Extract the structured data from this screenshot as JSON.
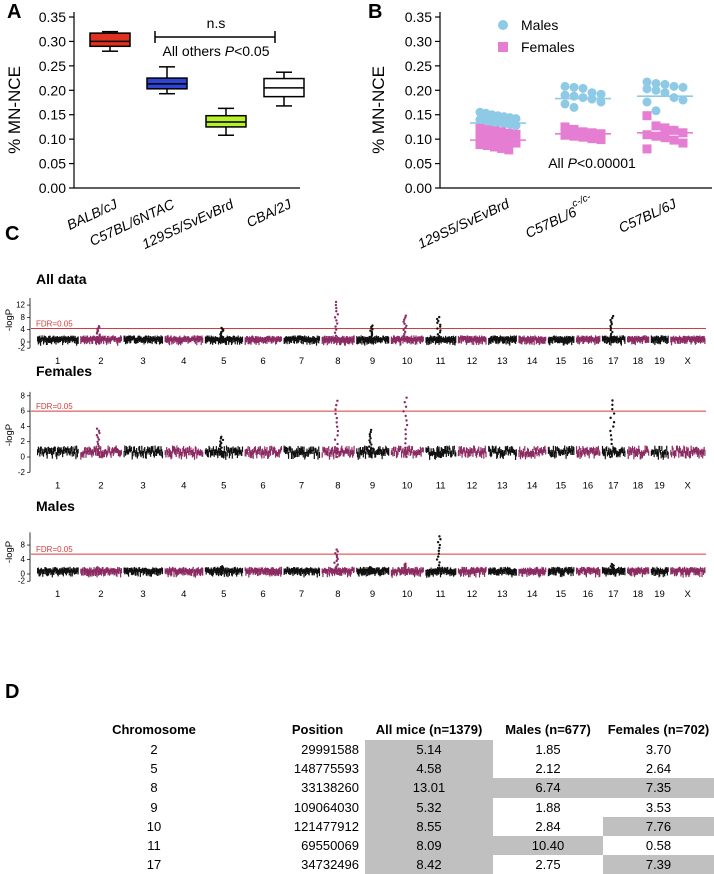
{
  "panel_labels": {
    "a": "A",
    "b": "B",
    "c": "C",
    "d": "D"
  },
  "chart_data": [
    {
      "type": "box",
      "id": "A",
      "ylabel": "% MN-NCE",
      "ylim": [
        0,
        0.35
      ],
      "yticks": [
        "0.00",
        "0.05",
        "0.10",
        "0.15",
        "0.20",
        "0.25",
        "0.30",
        "0.35"
      ],
      "categories": [
        "BALB/cJ",
        "C57BL/6NTAC",
        "129S5/SvEvBrd",
        "CBA/2J"
      ],
      "boxes": [
        {
          "min": 0.28,
          "q1": 0.29,
          "median": 0.3,
          "q3": 0.317,
          "max": 0.32,
          "color": "#e0311e"
        },
        {
          "min": 0.193,
          "q1": 0.203,
          "median": 0.213,
          "q3": 0.225,
          "max": 0.248,
          "color": "#2f44d0"
        },
        {
          "min": 0.108,
          "q1": 0.125,
          "median": 0.135,
          "q3": 0.148,
          "max": 0.163,
          "color": "#b9f02a"
        },
        {
          "min": 0.168,
          "q1": 0.187,
          "median": 0.205,
          "q3": 0.224,
          "max": 0.237,
          "color": "#ffffff"
        }
      ],
      "annotation_ns": "n.s",
      "annotation_prefix": "All others ",
      "annotation_p": "P",
      "annotation_suffix": "<0.05"
    },
    {
      "type": "scatter",
      "id": "B",
      "ylabel": "% MN-NCE",
      "ylim": [
        0,
        0.35
      ],
      "yticks": [
        "0.00",
        "0.05",
        "0.10",
        "0.15",
        "0.20",
        "0.25",
        "0.30",
        "0.35"
      ],
      "categories": [
        "129S5/SvEvBrd",
        "C57BL/6",
        "C57BL/6J"
      ],
      "category_superscript": [
        "",
        "c-/c-",
        ""
      ],
      "legend": [
        "Males",
        "Females"
      ],
      "series": [
        {
          "name": "Males",
          "color": "#8ecae6",
          "means": [
            0.133,
            0.183,
            0.188
          ],
          "values": [
            [
              0.155,
              0.153,
              0.15,
              0.148,
              0.146,
              0.144,
              0.142,
              0.14,
              0.138,
              0.136,
              0.134,
              0.132,
              0.13,
              0.128,
              0.126,
              0.123,
              0.12,
              0.117,
              0.113,
              0.11
            ],
            [
              0.208,
              0.206,
              0.204,
              0.195,
              0.192,
              0.19,
              0.188,
              0.185,
              0.182,
              0.176,
              0.172,
              0.165
            ],
            [
              0.217,
              0.214,
              0.212,
              0.208,
              0.206,
              0.203,
              0.2,
              0.195,
              0.185,
              0.18,
              0.176,
              0.158
            ]
          ]
        },
        {
          "name": "Females",
          "color": "#e57ed2",
          "means": [
            0.098,
            0.111,
            0.113
          ],
          "values": [
            [
              0.122,
              0.119,
              0.117,
              0.115,
              0.112,
              0.11,
              0.107,
              0.104,
              0.101,
              0.098,
              0.095,
              0.092,
              0.089,
              0.087,
              0.084,
              0.081,
              0.078
            ],
            [
              0.125,
              0.12,
              0.115,
              0.113,
              0.111,
              0.108,
              0.106,
              0.104,
              0.101,
              0.099
            ],
            [
              0.148,
              0.127,
              0.123,
              0.118,
              0.113,
              0.109,
              0.106,
              0.103,
              0.098,
              0.092,
              0.08
            ]
          ]
        }
      ],
      "annotation_prefix": "All ",
      "annotation_p": "P",
      "annotation_suffix": "<0.00001"
    },
    {
      "type": "manhattan",
      "id": "C",
      "ylabel": "-logP",
      "fdr_label": "FDR=0.05",
      "chromosomes": [
        "1",
        "2",
        "3",
        "4",
        "5",
        "6",
        "7",
        "8",
        "9",
        "10",
        "11",
        "12",
        "13",
        "14",
        "15",
        "16",
        "17",
        "18",
        "19",
        "X"
      ],
      "colors": [
        "#111111",
        "#8c2a62"
      ],
      "panels": [
        {
          "title": "All data",
          "yticks": [
            "-2",
            "0",
            "4",
            "8",
            "12"
          ],
          "ymax": 13,
          "fdr": 4.4,
          "peaks": {
            "2": 5.14,
            "5": 4.58,
            "8": 13.01,
            "9": 5.32,
            "10": 8.55,
            "11": 8.09,
            "17": 8.42
          }
        },
        {
          "title": "Females",
          "yticks": [
            "-2",
            "0",
            "2",
            "4",
            "6",
            "8"
          ],
          "ymax": 8,
          "fdr": 6.0,
          "peaks": {
            "2": 3.7,
            "5": 2.64,
            "8": 7.35,
            "9": 3.53,
            "10": 7.76,
            "11": 0.58,
            "17": 7.39
          }
        },
        {
          "title": "Males",
          "yticks": [
            "-2",
            "0",
            "4",
            "8"
          ],
          "ymax": 10.4,
          "fdr": 5.5,
          "peaks": {
            "2": 1.85,
            "5": 2.12,
            "8": 6.74,
            "9": 1.88,
            "10": 2.84,
            "11": 10.4,
            "17": 2.75
          }
        }
      ]
    },
    {
      "type": "table",
      "id": "D",
      "headers": [
        "Chromosome",
        "Position",
        "All mice (n=1379)",
        "Males (n=677)",
        "Females (n=702)"
      ],
      "rows": [
        {
          "cells": [
            "2",
            "29991588",
            "5.14",
            "1.85",
            "3.70"
          ],
          "highlight": [
            false,
            false,
            true,
            false,
            false
          ]
        },
        {
          "cells": [
            "5",
            "148775593",
            "4.58",
            "2.12",
            "2.64"
          ],
          "highlight": [
            false,
            false,
            true,
            false,
            false
          ]
        },
        {
          "cells": [
            "8",
            "33138260",
            "13.01",
            "6.74",
            "7.35"
          ],
          "highlight": [
            false,
            false,
            true,
            true,
            true
          ]
        },
        {
          "cells": [
            "9",
            "109064030",
            "5.32",
            "1.88",
            "3.53"
          ],
          "highlight": [
            false,
            false,
            true,
            false,
            false
          ]
        },
        {
          "cells": [
            "10",
            "121477912",
            "8.55",
            "2.84",
            "7.76"
          ],
          "highlight": [
            false,
            false,
            true,
            false,
            true
          ]
        },
        {
          "cells": [
            "11",
            "69550069",
            "8.09",
            "10.40",
            "0.58"
          ],
          "highlight": [
            false,
            false,
            true,
            true,
            false
          ]
        },
        {
          "cells": [
            "17",
            "34732496",
            "8.42",
            "2.75",
            "7.39"
          ],
          "highlight": [
            false,
            false,
            true,
            false,
            true
          ]
        }
      ]
    }
  ]
}
